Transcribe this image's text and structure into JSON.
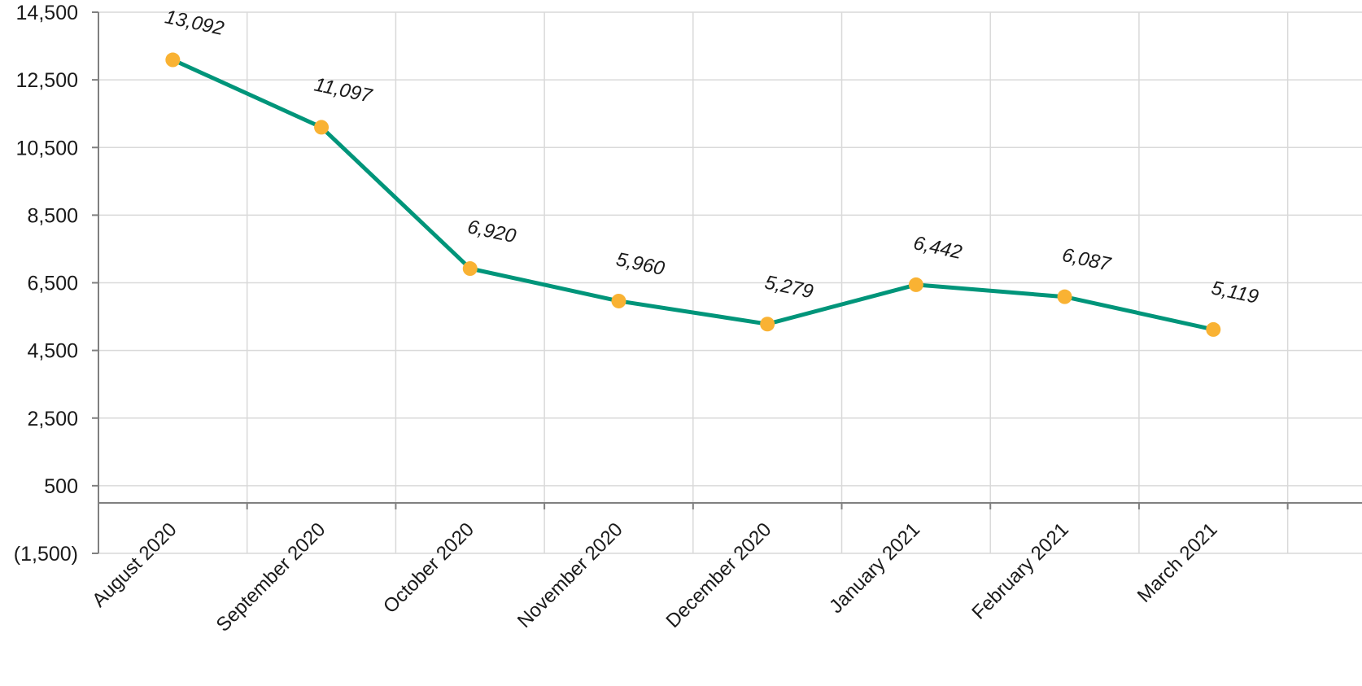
{
  "chart_data": {
    "type": "line",
    "title": "",
    "xlabel": "",
    "ylabel": "",
    "categories": [
      "August 2020",
      "September 2020",
      "October 2020",
      "November 2020",
      "December 2020",
      "January 2021",
      "February 2021",
      "March 2021"
    ],
    "series": [
      {
        "values": [
          13092,
          11097,
          6920,
          5960,
          5279,
          6442,
          6087,
          5119
        ]
      }
    ],
    "data_labels": [
      "13,092",
      "11,097",
      "6,920",
      "5,960",
      "5,279",
      "6,442",
      "6,087",
      "5,119"
    ],
    "y_ticks": [
      14500,
      12500,
      10500,
      8500,
      6500,
      4500,
      2500,
      500,
      -1500
    ],
    "y_tick_labels": [
      "14,500",
      "12,500",
      "10,500",
      "8,500",
      "6,500",
      "4,500",
      "2,500",
      "500",
      "(1,500)"
    ],
    "ylim": [
      -1500,
      14500
    ],
    "grid": true,
    "legend": "none",
    "colors": {
      "line": "#00957A",
      "marker": "#F9B233",
      "grid": "#D9D9D9",
      "axis": "#808080"
    }
  }
}
